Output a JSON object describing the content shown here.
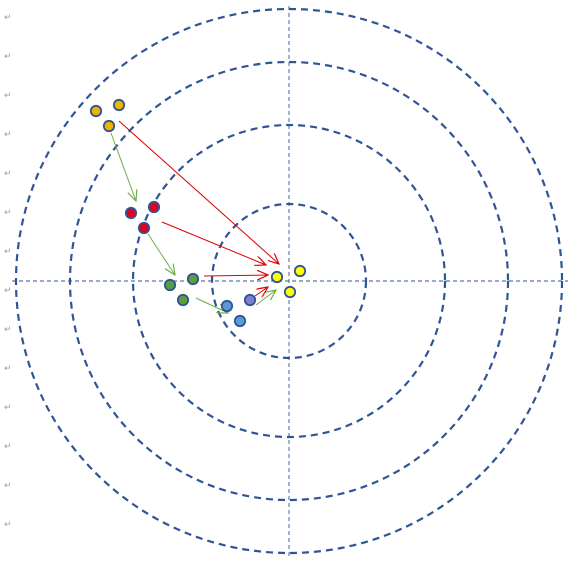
{
  "document": {
    "paragraph_mark": "↵",
    "paragraph_mark_count": 14
  },
  "diagram": {
    "type": "concentric-target",
    "ring_count": 4,
    "ring_style": "dashed",
    "axes_style": "dashed",
    "colors": {
      "ring": "#2f5597",
      "axis": "#2f5597",
      "marker_outline": "#2f5597",
      "arrow_green": "#70ad47",
      "arrow_red": "#e00000"
    },
    "groups": [
      {
        "name": "orange-group",
        "color": "#f0b400",
        "points": 3
      },
      {
        "name": "red-group",
        "color": "#e3001b",
        "points": 3
      },
      {
        "name": "green-group",
        "color": "#5aa03a",
        "points": 3
      },
      {
        "name": "blue-group",
        "color": "#5b9bd5",
        "points": 3
      },
      {
        "name": "yellow-group",
        "color": "#ffff00",
        "points": 3
      }
    ],
    "arrows": [
      {
        "from": "orange-group",
        "to": "red-group",
        "color": "green"
      },
      {
        "from": "red-group",
        "to": "green-group",
        "color": "green"
      },
      {
        "from": "green-group",
        "to": "blue-group",
        "color": "green"
      },
      {
        "from": "blue-group",
        "to": "yellow-group",
        "color": "green"
      },
      {
        "from": "orange-group",
        "to": "yellow-group",
        "color": "red"
      },
      {
        "from": "red-group",
        "to": "yellow-group",
        "color": "red"
      },
      {
        "from": "green-group",
        "to": "yellow-group",
        "color": "red"
      },
      {
        "from": "blue-group",
        "to": "yellow-group",
        "color": "red"
      }
    ]
  }
}
